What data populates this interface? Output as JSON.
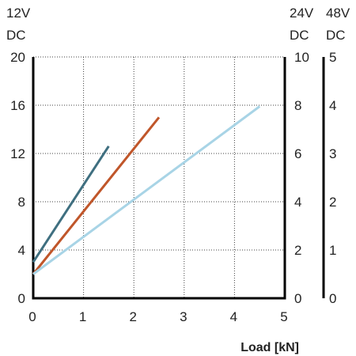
{
  "chart_data": {
    "type": "line",
    "title": "",
    "xlabel": "Load [kN]",
    "xlim": [
      0,
      5
    ],
    "x_ticks": [
      "0",
      "1",
      "2",
      "3",
      "4",
      "5"
    ],
    "grid": true,
    "legend": "none",
    "axes": [
      {
        "id": "left",
        "title_lines": [
          "12V",
          "DC"
        ],
        "ylim": [
          0,
          20
        ],
        "ticks": [
          "0",
          "4",
          "8",
          "12",
          "16",
          "20"
        ]
      },
      {
        "id": "right1",
        "title_lines": [
          "24V",
          "DC"
        ],
        "ylim": [
          0,
          10
        ],
        "ticks": [
          "0",
          "2",
          "4",
          "6",
          "8",
          "10"
        ]
      },
      {
        "id": "right2",
        "title_lines": [
          "48V",
          "DC"
        ],
        "ylim": [
          0,
          5
        ],
        "ticks": [
          "0",
          "1",
          "2",
          "3",
          "4",
          "5"
        ]
      }
    ],
    "series": [
      {
        "color": "#3f6f80",
        "x": [
          0,
          1.5
        ],
        "y": [
          3,
          12.6
        ]
      },
      {
        "color": "#c0562a",
        "x": [
          0,
          2.5
        ],
        "y": [
          2,
          15
        ]
      },
      {
        "color": "#a8d4e6",
        "x": [
          0,
          4.5
        ],
        "y": [
          2,
          15.9
        ]
      }
    ]
  }
}
